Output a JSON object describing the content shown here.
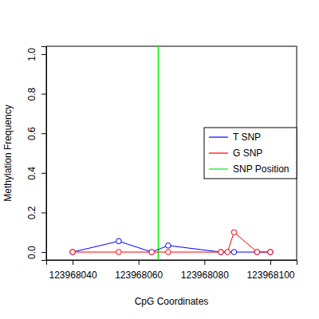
{
  "chart_data": {
    "type": "line",
    "x_label": "CpG Coordinates",
    "y_label": "Methylation Frequency",
    "marker": "circle",
    "legend": "right",
    "xlim": [
      123968032,
      123968108
    ],
    "xticks": [
      123968040,
      123968060,
      123968080,
      123968100
    ],
    "ylim": [
      -0.04,
      1.04
    ],
    "yticks": [
      {
        "value": 0,
        "label": "0.0"
      },
      {
        "value": 0.2,
        "label": "0.2"
      },
      {
        "value": 0.4,
        "label": "0.4"
      },
      {
        "value": 0.6,
        "label": "0.6"
      },
      {
        "value": 0.8,
        "label": "0.8"
      },
      {
        "value": 1,
        "label": "1.0"
      }
    ],
    "series": [
      {
        "name": "T SNP",
        "color": "#0000ff",
        "x": [
          123968040,
          123968054,
          123968064,
          123968069,
          123968085,
          123968089,
          123968096,
          123968100
        ],
        "values": [
          0,
          0.055,
          0,
          0.033,
          0,
          0,
          0,
          0
        ]
      },
      {
        "name": "G SNP",
        "color": "#ff0000",
        "x": [
          123968040,
          123968054,
          123968064,
          123968069,
          123968085,
          123968087,
          123968089,
          123968096,
          123968100
        ],
        "values": [
          0,
          0,
          0,
          0,
          0,
          0,
          0.1,
          0,
          0
        ]
      }
    ],
    "snp_line": {
      "name": "SNP Position",
      "color": "#00ee00",
      "x": 123968066
    }
  }
}
